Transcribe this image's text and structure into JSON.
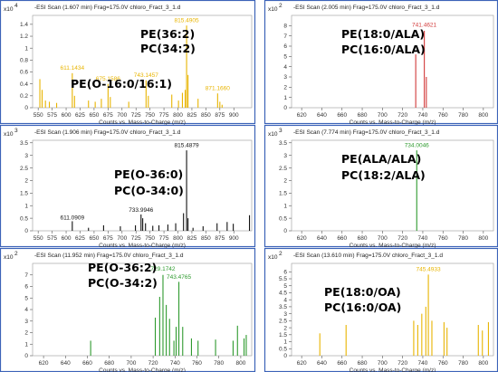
{
  "chart_data": [
    {
      "type": "bar",
      "title": "-ESI Scan (1.607 min) Frag=175.0V chloro_Fract_3_1.d",
      "multiplier": "x10",
      "exponent": "4",
      "xlabel": "Counts vs. Mass-to-Charge (m/z)",
      "xlim": [
        540,
        932
      ],
      "ylim": [
        0,
        1.55
      ],
      "xticks": [
        550,
        575,
        600,
        625,
        650,
        675,
        700,
        725,
        750,
        775,
        800,
        825,
        850,
        875,
        900
      ],
      "yticks": [
        0,
        0.2,
        0.4,
        0.6,
        0.8,
        1,
        1.2,
        1.4
      ],
      "color": "#e8b400",
      "annotations": [
        "PE(36:2)",
        "PC(34:2)",
        "PE(O-16:0/16:1)"
      ],
      "peak_labels": [
        {
          "text": "611.1434",
          "x": 611,
          "y": 0.62
        },
        {
          "text": "675.1586",
          "x": 675,
          "y": 0.44
        },
        {
          "text": "743.1457",
          "x": 743,
          "y": 0.5
        },
        {
          "text": "815.4905",
          "x": 815.5,
          "y": 1.42
        },
        {
          "text": "871.1660",
          "x": 871,
          "y": 0.28
        }
      ],
      "peaks": [
        {
          "x": 553,
          "y": 0.48
        },
        {
          "x": 557,
          "y": 0.3
        },
        {
          "x": 563,
          "y": 0.12
        },
        {
          "x": 570,
          "y": 0.1
        },
        {
          "x": 583,
          "y": 0.08
        },
        {
          "x": 611,
          "y": 0.58
        },
        {
          "x": 615,
          "y": 0.2
        },
        {
          "x": 640,
          "y": 0.12
        },
        {
          "x": 652,
          "y": 0.1
        },
        {
          "x": 663,
          "y": 0.15
        },
        {
          "x": 675,
          "y": 0.4
        },
        {
          "x": 679,
          "y": 0.18
        },
        {
          "x": 712,
          "y": 0.1
        },
        {
          "x": 743,
          "y": 0.46
        },
        {
          "x": 747,
          "y": 0.2
        },
        {
          "x": 789,
          "y": 0.22
        },
        {
          "x": 801,
          "y": 0.12
        },
        {
          "x": 808,
          "y": 0.25
        },
        {
          "x": 813,
          "y": 0.3
        },
        {
          "x": 815.5,
          "y": 1.38
        },
        {
          "x": 818,
          "y": 0.55
        },
        {
          "x": 836,
          "y": 0.15
        },
        {
          "x": 871,
          "y": 0.24
        },
        {
          "x": 875,
          "y": 0.1
        },
        {
          "x": 879,
          "y": 0.05
        }
      ]
    },
    {
      "type": "bar",
      "title": "-ESI Scan (2.005 min) Frag=175.0V chloro_Fract_3_1.d",
      "multiplier": "x10",
      "exponent": "2",
      "xlabel": "Counts vs. Mass-to-Charge (m/z)",
      "xlim": [
        610,
        810
      ],
      "ylim": [
        0,
        9.0
      ],
      "xticks": [
        620,
        640,
        660,
        680,
        700,
        720,
        740,
        760,
        780,
        800
      ],
      "yticks": [
        0,
        1,
        2,
        3,
        4,
        5,
        6,
        7,
        8
      ],
      "color": "#d23a3a",
      "annotations": [
        "PE(18:0/ALA)",
        "PC(16:0/ALA)"
      ],
      "peak_labels": [
        {
          "text": "741.4621",
          "x": 741.5,
          "y": 7.8
        }
      ],
      "peaks": [
        {
          "x": 733,
          "y": 5.2
        },
        {
          "x": 741.5,
          "y": 7.5
        },
        {
          "x": 743.5,
          "y": 3.0
        }
      ]
    },
    {
      "type": "bar",
      "title": "-ESI Scan (1.906 min) Frag=175.0V chloro_Fract_3_1.d",
      "multiplier": "x10",
      "exponent": "3",
      "xlabel": "Counts vs. Mass-to-Charge (m/z)",
      "xlim": [
        540,
        932
      ],
      "ylim": [
        0,
        3.6
      ],
      "xticks": [
        550,
        575,
        600,
        625,
        650,
        675,
        700,
        725,
        750,
        775,
        800,
        825,
        850,
        875,
        900
      ],
      "yticks": [
        0,
        0.5,
        1,
        1.5,
        2,
        2.5,
        3,
        3.5
      ],
      "color": "#111111",
      "annotations": [
        "PE(O-36:0)",
        "PC(O-34:0)"
      ],
      "peak_labels": [
        {
          "text": "611.0909",
          "x": 611,
          "y": 0.42
        },
        {
          "text": "733.9946",
          "x": 734,
          "y": 0.72
        },
        {
          "text": "815.4879",
          "x": 815.5,
          "y": 3.3
        }
      ],
      "peaks": [
        {
          "x": 611,
          "y": 0.38
        },
        {
          "x": 640,
          "y": 0.12
        },
        {
          "x": 667,
          "y": 0.22
        },
        {
          "x": 697,
          "y": 0.18
        },
        {
          "x": 724,
          "y": 0.22
        },
        {
          "x": 734,
          "y": 0.65
        },
        {
          "x": 737,
          "y": 0.5
        },
        {
          "x": 742,
          "y": 0.3
        },
        {
          "x": 755,
          "y": 0.2
        },
        {
          "x": 766,
          "y": 0.22
        },
        {
          "x": 782,
          "y": 0.25
        },
        {
          "x": 796,
          "y": 0.3
        },
        {
          "x": 810,
          "y": 0.7
        },
        {
          "x": 815.5,
          "y": 3.2
        },
        {
          "x": 818,
          "y": 0.5
        },
        {
          "x": 827,
          "y": 0.12
        },
        {
          "x": 845,
          "y": 0.18
        },
        {
          "x": 870,
          "y": 0.3
        },
        {
          "x": 888,
          "y": 0.35
        },
        {
          "x": 899,
          "y": 0.28
        },
        {
          "x": 928,
          "y": 0.62
        }
      ]
    },
    {
      "type": "bar",
      "title": "-ESI Scan (7.774 min) Frag=175.0V chloro_Fract_3_1.d",
      "multiplier": "x10",
      "exponent": "3",
      "xlabel": "Counts vs. Mass-to-Charge (m/z)",
      "xlim": [
        610,
        810
      ],
      "ylim": [
        0,
        3.6
      ],
      "xticks": [
        620,
        640,
        660,
        680,
        700,
        720,
        740,
        760,
        780,
        800
      ],
      "yticks": [
        0,
        0.5,
        1,
        1.5,
        2,
        2.5,
        3,
        3.5
      ],
      "color": "#2e9a2e",
      "annotations": [
        "PE(ALA/ALA)",
        "PC(18:2/ALA)"
      ],
      "peak_labels": [
        {
          "text": "734.0046",
          "x": 734,
          "y": 3.3
        }
      ],
      "peaks": [
        {
          "x": 734,
          "y": 3.2
        }
      ]
    },
    {
      "type": "bar",
      "title": "-ESI Scan (11.952 min) Frag=175.0V chloro_Fract_3_1.d",
      "multiplier": "x10",
      "exponent": "2",
      "xlabel": "Counts vs. Mass-to-Charge (m/z)",
      "xlim": [
        610,
        810
      ],
      "ylim": [
        0,
        8.0
      ],
      "xticks": [
        620,
        640,
        660,
        680,
        700,
        720,
        740,
        760,
        780,
        800
      ],
      "yticks": [
        0,
        1,
        2,
        3,
        4,
        5,
        6,
        7
      ],
      "color": "#2e9a2e",
      "annotations": [
        "PE(O-36:2)",
        "PC(O-34:2)"
      ],
      "peak_labels": [
        {
          "text": "729.1742",
          "x": 729,
          "y": 7.3
        },
        {
          "text": "743.4765",
          "x": 743.5,
          "y": 6.6
        }
      ],
      "peaks": [
        {
          "x": 663,
          "y": 1.3
        },
        {
          "x": 722,
          "y": 3.3
        },
        {
          "x": 726,
          "y": 5.1
        },
        {
          "x": 729,
          "y": 7.0
        },
        {
          "x": 732,
          "y": 4.4
        },
        {
          "x": 735,
          "y": 3.2
        },
        {
          "x": 739,
          "y": 1.3
        },
        {
          "x": 741,
          "y": 2.5
        },
        {
          "x": 743.5,
          "y": 6.4
        },
        {
          "x": 747,
          "y": 2.5
        },
        {
          "x": 755,
          "y": 1.5
        },
        {
          "x": 761,
          "y": 1.3
        },
        {
          "x": 777,
          "y": 1.4
        },
        {
          "x": 793,
          "y": 1.3
        },
        {
          "x": 797,
          "y": 2.6
        },
        {
          "x": 803,
          "y": 1.5
        },
        {
          "x": 805,
          "y": 1.8
        }
      ]
    },
    {
      "type": "bar",
      "title": "-ESI Scan (13.610 min) Frag=175.0V chloro_Fract_3_1.d",
      "multiplier": "x10",
      "exponent": "2",
      "xlabel": "Counts vs. Mass-to-Charge (m/z)",
      "xlim": [
        610,
        810
      ],
      "ylim": [
        0,
        6.6
      ],
      "xticks": [
        620,
        640,
        660,
        680,
        700,
        720,
        740,
        760,
        780,
        800
      ],
      "yticks": [
        0,
        0.5,
        1,
        1.5,
        2,
        2.5,
        3,
        3.5,
        4,
        4.5,
        5,
        5.5,
        6
      ],
      "color": "#e8b400",
      "annotations": [
        "PE(18:0/OA)",
        "PC(16:0/OA)"
      ],
      "peak_labels": [
        {
          "text": "745.4933",
          "x": 745.5,
          "y": 6.0
        }
      ],
      "peaks": [
        {
          "x": 638,
          "y": 1.6
        },
        {
          "x": 664,
          "y": 2.2
        },
        {
          "x": 731,
          "y": 2.5
        },
        {
          "x": 735,
          "y": 2.2
        },
        {
          "x": 739,
          "y": 3.0
        },
        {
          "x": 743,
          "y": 3.5
        },
        {
          "x": 745.5,
          "y": 5.8
        },
        {
          "x": 749,
          "y": 2.5
        },
        {
          "x": 761,
          "y": 2.4
        },
        {
          "x": 764,
          "y": 2.0
        },
        {
          "x": 795,
          "y": 2.2
        },
        {
          "x": 799,
          "y": 1.8
        },
        {
          "x": 805,
          "y": 2.4
        }
      ]
    }
  ]
}
